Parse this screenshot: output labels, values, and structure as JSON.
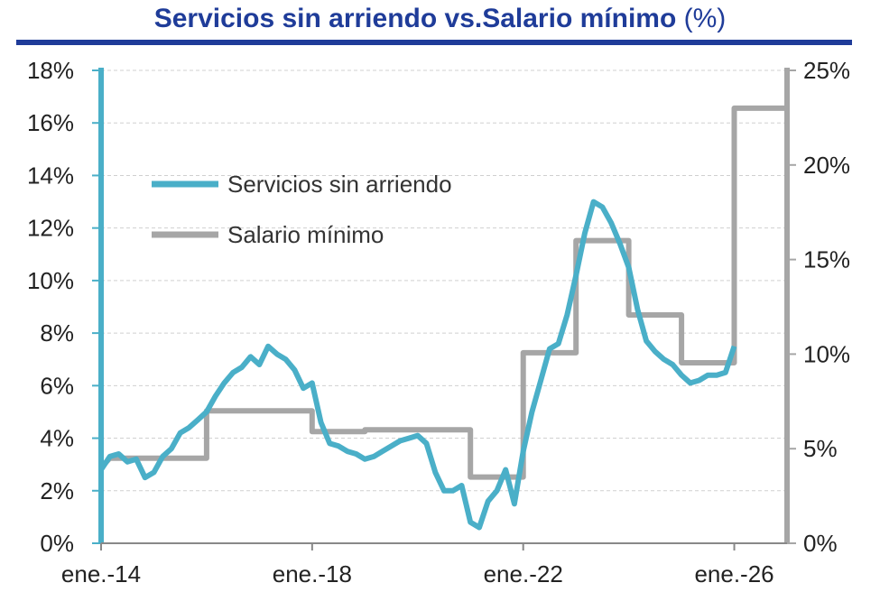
{
  "title": {
    "main": "Servicios sin arriendo vs.Salario mínimo",
    "unit": "(%)"
  },
  "colors": {
    "title": "#1F3C99",
    "servicios": "#4AAFC8",
    "salario": "#A6A6A6",
    "left_axis": "#4AAFC8",
    "right_axis": "#A6A6A6",
    "grid": "#D0D0D0"
  },
  "chart_data": {
    "type": "line",
    "title": "Servicios sin arriendo vs.Salario mínimo (%)",
    "x_unit": "month",
    "x_range": [
      "2014-01",
      "2027-01"
    ],
    "x_ticks": [
      "ene.-14",
      "ene.-18",
      "ene.-22",
      "ene.-26"
    ],
    "y_left": {
      "range": [
        0,
        18
      ],
      "ticks": [
        "0%",
        "2%",
        "4%",
        "6%",
        "8%",
        "10%",
        "12%",
        "14%",
        "16%",
        "18%"
      ]
    },
    "y_right": {
      "range": [
        0,
        25
      ],
      "ticks": [
        "0%",
        "5%",
        "10%",
        "15%",
        "20%",
        "25%"
      ]
    },
    "grid": true,
    "legend_position": "top-left",
    "series": [
      {
        "name": "Servicios sin arriendo",
        "axis": "left",
        "points": [
          [
            "2014-01",
            2.8
          ],
          [
            "2014-03",
            3.3
          ],
          [
            "2014-05",
            3.4
          ],
          [
            "2014-07",
            3.1
          ],
          [
            "2014-09",
            3.2
          ],
          [
            "2014-11",
            2.5
          ],
          [
            "2015-01",
            2.7
          ],
          [
            "2015-03",
            3.3
          ],
          [
            "2015-05",
            3.6
          ],
          [
            "2015-07",
            4.2
          ],
          [
            "2015-09",
            4.4
          ],
          [
            "2015-11",
            4.7
          ],
          [
            "2016-01",
            5.0
          ],
          [
            "2016-03",
            5.6
          ],
          [
            "2016-05",
            6.1
          ],
          [
            "2016-07",
            6.5
          ],
          [
            "2016-09",
            6.7
          ],
          [
            "2016-11",
            7.1
          ],
          [
            "2017-01",
            6.8
          ],
          [
            "2017-03",
            7.5
          ],
          [
            "2017-05",
            7.2
          ],
          [
            "2017-07",
            7.0
          ],
          [
            "2017-09",
            6.6
          ],
          [
            "2017-11",
            5.9
          ],
          [
            "2018-01",
            6.1
          ],
          [
            "2018-03",
            4.6
          ],
          [
            "2018-05",
            3.8
          ],
          [
            "2018-07",
            3.7
          ],
          [
            "2018-09",
            3.5
          ],
          [
            "2018-11",
            3.4
          ],
          [
            "2019-01",
            3.2
          ],
          [
            "2019-03",
            3.3
          ],
          [
            "2019-05",
            3.5
          ],
          [
            "2019-07",
            3.7
          ],
          [
            "2019-09",
            3.9
          ],
          [
            "2019-11",
            4.0
          ],
          [
            "2020-01",
            4.1
          ],
          [
            "2020-03",
            3.8
          ],
          [
            "2020-05",
            2.7
          ],
          [
            "2020-07",
            2.0
          ],
          [
            "2020-09",
            2.0
          ],
          [
            "2020-11",
            2.2
          ],
          [
            "2021-01",
            0.8
          ],
          [
            "2021-03",
            0.6
          ],
          [
            "2021-05",
            1.6
          ],
          [
            "2021-07",
            2.0
          ],
          [
            "2021-09",
            2.8
          ],
          [
            "2021-11",
            1.5
          ],
          [
            "2022-01",
            3.5
          ],
          [
            "2022-03",
            5.0
          ],
          [
            "2022-05",
            6.2
          ],
          [
            "2022-07",
            7.4
          ],
          [
            "2022-09",
            7.6
          ],
          [
            "2022-11",
            8.7
          ],
          [
            "2023-01",
            10.2
          ],
          [
            "2023-03",
            11.8
          ],
          [
            "2023-05",
            13.0
          ],
          [
            "2023-07",
            12.8
          ],
          [
            "2023-09",
            12.2
          ],
          [
            "2023-11",
            11.4
          ],
          [
            "2024-01",
            10.5
          ],
          [
            "2024-03",
            8.9
          ],
          [
            "2024-05",
            7.7
          ],
          [
            "2024-07",
            7.3
          ],
          [
            "2024-09",
            7.0
          ],
          [
            "2024-11",
            6.8
          ],
          [
            "2025-01",
            6.4
          ],
          [
            "2025-03",
            6.1
          ],
          [
            "2025-05",
            6.2
          ],
          [
            "2025-07",
            6.4
          ],
          [
            "2025-09",
            6.4
          ],
          [
            "2025-11",
            6.5
          ],
          [
            "2026-01",
            7.5
          ]
        ]
      },
      {
        "name": "Salario mínimo",
        "axis": "right",
        "points": [
          [
            "2014-01",
            4.0
          ],
          [
            "2014-03",
            4.5
          ],
          [
            "2016-01",
            4.5
          ],
          [
            "2016-01",
            7.0
          ],
          [
            "2018-01",
            7.0
          ],
          [
            "2018-01",
            5.9
          ],
          [
            "2019-01",
            5.9
          ],
          [
            "2019-01",
            6.0
          ],
          [
            "2021-01",
            6.0
          ],
          [
            "2021-01",
            3.5
          ],
          [
            "2022-01",
            3.5
          ],
          [
            "2022-01",
            10.07
          ],
          [
            "2023-01",
            10.07
          ],
          [
            "2023-01",
            16.0
          ],
          [
            "2024-01",
            16.0
          ],
          [
            "2024-01",
            12.07
          ],
          [
            "2025-01",
            12.07
          ],
          [
            "2025-01",
            9.54
          ],
          [
            "2026-01",
            9.54
          ],
          [
            "2026-01",
            23.0
          ],
          [
            "2027-01",
            23.0
          ]
        ]
      }
    ]
  }
}
